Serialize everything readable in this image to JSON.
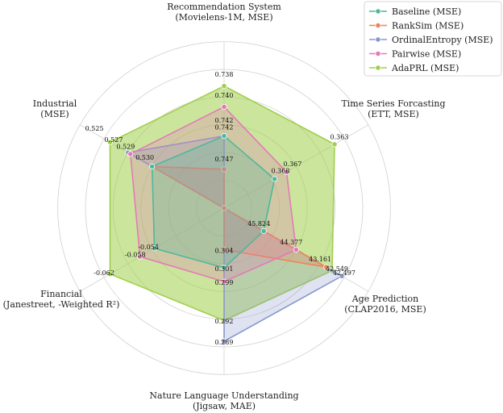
{
  "chart_data": {
    "type": "radar",
    "axes": [
      {
        "label_lines": [
          "Recommendation System",
          "(Movielens-1M, MSE)"
        ],
        "label_html": "",
        "anchor": "top"
      },
      {
        "label_lines": [
          "Time Series Forcasting",
          "(ETT, MSE)"
        ],
        "label_html": "",
        "anchor": "top-right"
      },
      {
        "label_lines": [
          "Age Prediction",
          "(CLAP2016, MSE)"
        ],
        "label_html": "",
        "anchor": "bottom-right"
      },
      {
        "label_lines": [
          "Nature Language Understanding",
          "(Jigsaw, MAE)"
        ],
        "label_html": "",
        "anchor": "bottom"
      },
      {
        "label_lines": [
          "Financial",
          "(Janestreet, -Weighted R²)"
        ],
        "label_html": "",
        "anchor": "bottom-left"
      },
      {
        "label_lines": [
          "Industrial",
          "(MSE)"
        ],
        "label_html": "",
        "anchor": "top-left"
      }
    ],
    "series": [
      {
        "name": "Baseline (MSE)",
        "color": "#4fb89a",
        "values": [
          0.742,
          0.368,
          45.824,
          0.301,
          -0.054,
          0.53
        ],
        "radius": [
          0.52,
          0.42,
          0.33,
          0.43,
          0.58,
          0.6
        ]
      },
      {
        "name": "RankSim (MSE)",
        "color": "#f0835a",
        "values": [
          0.747,
          null,
          43.161,
          0.304,
          null,
          0.53
        ],
        "radius": [
          0.28,
          0.0,
          0.85,
          0.3,
          0.0,
          0.6
        ]
      },
      {
        "name": "OrdinalEntropy (MSE)",
        "color": "#8898cc",
        "values": [
          0.742,
          null,
          42.549,
          0.289,
          null,
          0.527
        ],
        "radius": [
          0.52,
          0.0,
          0.98,
          0.96,
          0.0,
          0.8
        ]
      },
      {
        "name": "Pairwise (MSE)",
        "color": "#e37ab8",
        "values": [
          0.74,
          0.367,
          44.377,
          0.299,
          -0.058,
          0.529
        ],
        "radius": [
          0.73,
          0.52,
          0.6,
          0.53,
          0.7,
          0.78
        ]
      },
      {
        "name": "AdaPRL (MSE)",
        "color": "#a1cf4c",
        "values": [
          0.738,
          0.363,
          42.497,
          0.292,
          -0.062,
          0.525
        ],
        "radius": [
          0.88,
          0.92,
          0.9,
          0.81,
          0.95,
          0.95
        ]
      }
    ],
    "value_labels": [
      {
        "text": "0.738",
        "axis": 0,
        "r": 0.93
      },
      {
        "text": "0.740",
        "axis": 0,
        "r": 0.78
      },
      {
        "text": "0.742",
        "axis": 0,
        "r": 0.6
      },
      {
        "text": "0.742",
        "axis": 0,
        "r": 0.55
      },
      {
        "text": "0.747",
        "axis": 0,
        "r": 0.32
      },
      {
        "text": "0.363",
        "axis": 1,
        "r": 0.96
      },
      {
        "text": "0.367",
        "axis": 1,
        "r": 0.57
      },
      {
        "text": "0.368",
        "axis": 1,
        "r": 0.47
      },
      {
        "text": "45.824",
        "axis": 2,
        "r": 0.29
      },
      {
        "text": "44.377",
        "axis": 2,
        "r": 0.56
      },
      {
        "text": "43.161",
        "axis": 2,
        "r": 0.8
      },
      {
        "text": "42.549",
        "axis": 2,
        "r": 0.94
      },
      {
        "text": "42.497",
        "axis": 2,
        "r": 1.0
      },
      {
        "text": "0.304",
        "axis": 3,
        "r": 0.34
      },
      {
        "text": "0.301",
        "axis": 3,
        "r": 0.47
      },
      {
        "text": "0.299",
        "axis": 3,
        "r": 0.57
      },
      {
        "text": "0.292",
        "axis": 3,
        "r": 0.85
      },
      {
        "text": "0.289",
        "axis": 3,
        "r": 1.0
      },
      {
        "text": "-0.054",
        "axis": 4,
        "r": 0.63
      },
      {
        "text": "-0.058",
        "axis": 4,
        "r": 0.74
      },
      {
        "text": "-0.062",
        "axis": 4,
        "r": 1.0
      },
      {
        "text": "0.525",
        "axis": 5,
        "r": 1.08
      },
      {
        "text": "0.527",
        "axis": 5,
        "r": 0.92
      },
      {
        "text": "0.529",
        "axis": 5,
        "r": 0.82
      },
      {
        "text": "0.530",
        "axis": 5,
        "r": 0.66
      }
    ],
    "ring_levels": [
      0.2,
      0.4,
      0.6,
      0.8,
      1.0,
      1.2
    ],
    "legend_position": "top-right",
    "grid": true
  }
}
